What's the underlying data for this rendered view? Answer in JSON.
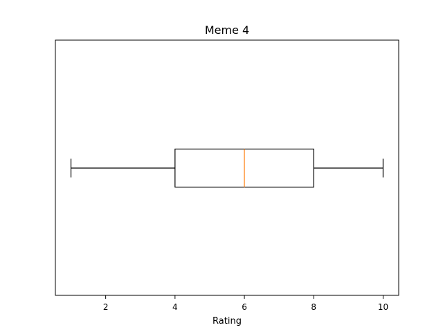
{
  "chart_data": {
    "type": "boxplot",
    "title": "Meme 4",
    "xlabel": "Rating",
    "ylabel": "",
    "orientation": "horizontal",
    "xlim": [
      0.55,
      10.45
    ],
    "xticks": [
      2,
      4,
      6,
      8,
      10
    ],
    "grid": false,
    "legend": "none",
    "box": {
      "whisker_low": 1,
      "q1": 4,
      "median": 6,
      "q3": 8,
      "whisker_high": 10
    },
    "colors": {
      "box": "#000000",
      "median": "#ff7f0e"
    }
  }
}
